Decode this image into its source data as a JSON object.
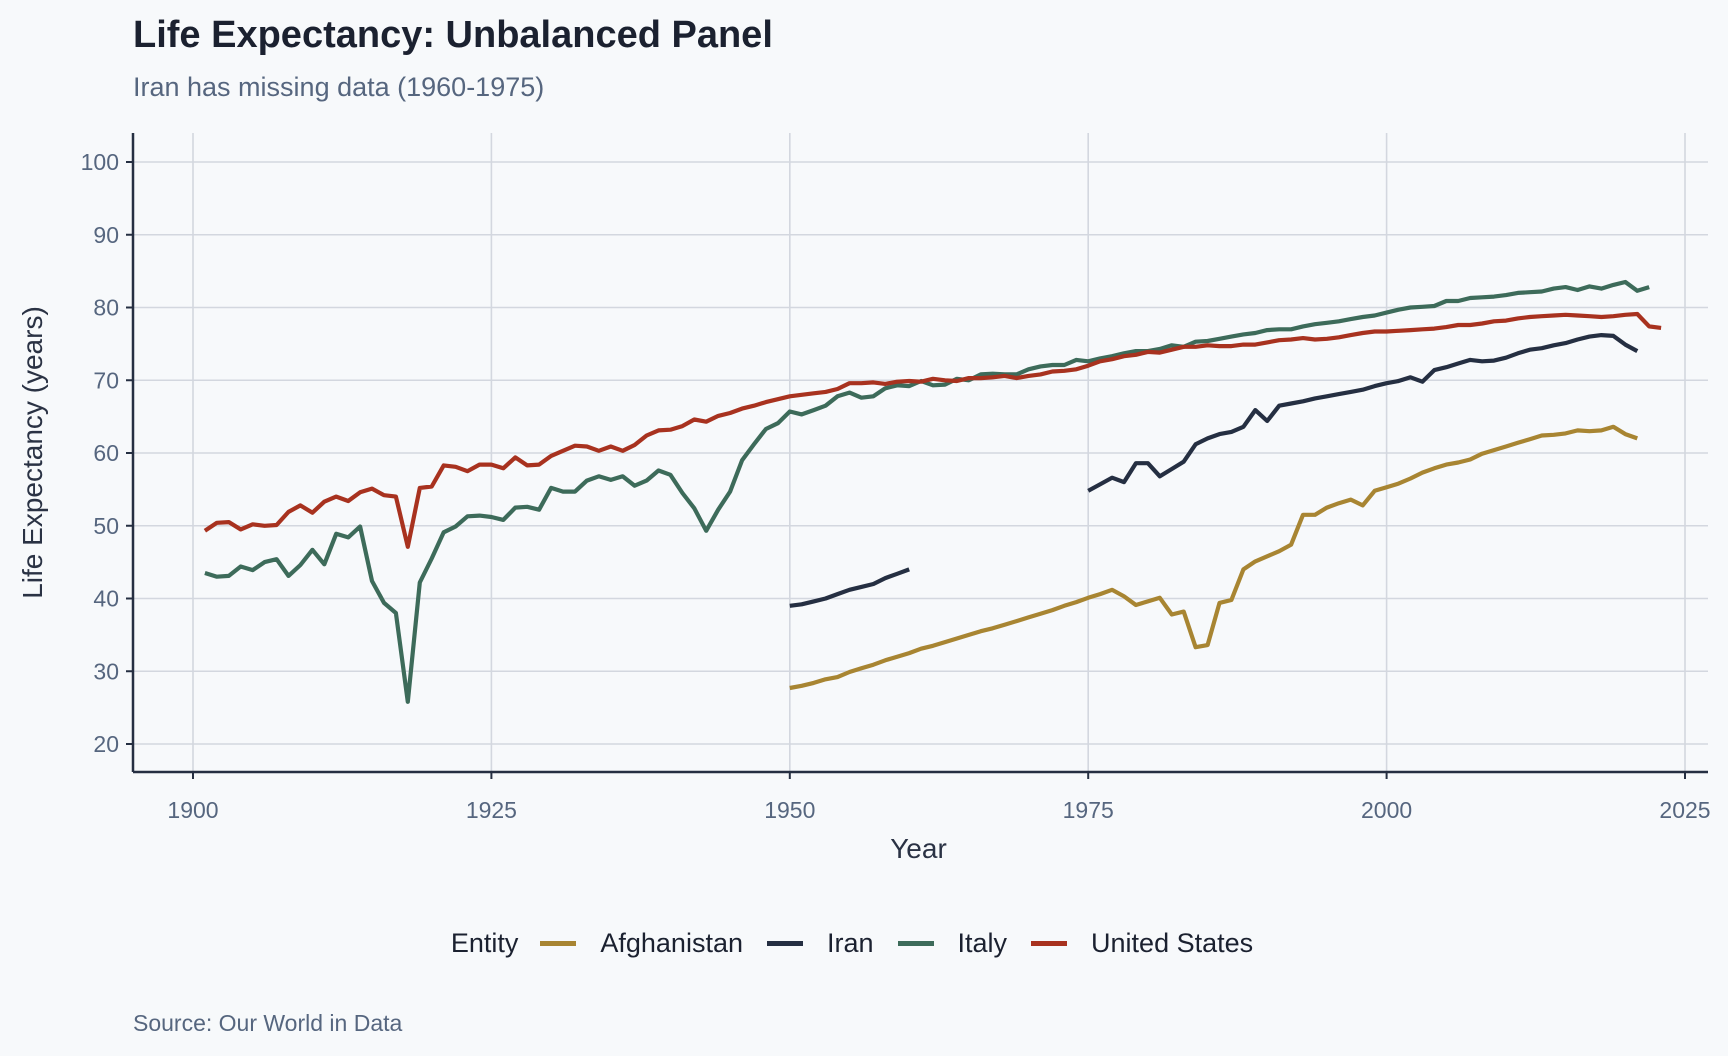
{
  "title": "Life Expectancy: Unbalanced Panel",
  "subtitle": "Iran has missing data (1960-1975)",
  "source": "Source: Our World in Data",
  "legend": {
    "title": "Entity",
    "items": [
      {
        "label": "Afghanistan",
        "color": "#a88532"
      },
      {
        "label": "Iran",
        "color": "#252f42"
      },
      {
        "label": "Italy",
        "color": "#3d6b5a"
      },
      {
        "label": "United States",
        "color": "#a8321f"
      }
    ]
  },
  "chart_data": {
    "type": "line",
    "title": "Life Expectancy: Unbalanced Panel",
    "subtitle": "Iran has missing data (1960-1975)",
    "xlabel": "Year",
    "ylabel": "Life Expectancy (years)",
    "xlim": [
      1895,
      2027
    ],
    "ylim": [
      16,
      104
    ],
    "xticks": [
      1900,
      1925,
      1950,
      1975,
      2000,
      2025
    ],
    "yticks": [
      20,
      30,
      40,
      50,
      60,
      70,
      80,
      90,
      100
    ],
    "grid": true,
    "legend_position": "bottom",
    "series": [
      {
        "name": "Afghanistan",
        "color": "#a88532",
        "segments": [
          {
            "x_start": 1950,
            "values": [
              27.7,
              28.0,
              28.4,
              28.9,
              29.2,
              29.9,
              30.4,
              30.9,
              31.5,
              32.0,
              32.5,
              33.1,
              33.5,
              34.0,
              34.5,
              35.0,
              35.5,
              35.9,
              36.4,
              36.9,
              37.4,
              37.9,
              38.4,
              39.0,
              39.5,
              40.1,
              40.6,
              41.2,
              40.3,
              39.1,
              39.6,
              40.1,
              37.8,
              38.2,
              33.3,
              33.6,
              39.4,
              39.8,
              44.0,
              45.1,
              45.8,
              46.5,
              47.4,
              51.5,
              51.5,
              52.5,
              53.1,
              53.6,
              52.8,
              54.8,
              55.3,
              55.8,
              56.5,
              57.3,
              57.9,
              58.4,
              58.7,
              59.1,
              59.9,
              60.4,
              60.9,
              61.4,
              61.9,
              62.4,
              62.5,
              62.7,
              63.1,
              63.0,
              63.1,
              63.6,
              62.6,
              62.0
            ]
          }
        ]
      },
      {
        "name": "Iran",
        "color": "#252f42",
        "segments": [
          {
            "x_start": 1950,
            "values": [
              39.0,
              39.2,
              39.6,
              40.0,
              40.6,
              41.2,
              41.6,
              42.0,
              42.8,
              43.4,
              44.0
            ]
          },
          {
            "x_start": 1975,
            "values": [
              54.8,
              55.7,
              56.6,
              56.0,
              58.6,
              58.6,
              56.8,
              57.8,
              58.8,
              61.2,
              62.0,
              62.6,
              62.9,
              63.6,
              65.9,
              64.4,
              66.5,
              66.8,
              67.1,
              67.5,
              67.8,
              68.1,
              68.4,
              68.7,
              69.2,
              69.6,
              69.9,
              70.4,
              69.8,
              71.4,
              71.8,
              72.3,
              72.8,
              72.6,
              72.7,
              73.1,
              73.7,
              74.2,
              74.4,
              74.8,
              75.1,
              75.6,
              76.0,
              76.2,
              76.1,
              74.9,
              74.0
            ]
          }
        ]
      },
      {
        "name": "Italy",
        "color": "#3d6b5a",
        "segments": [
          {
            "x_start": 1901,
            "values": [
              43.5,
              43.0,
              43.1,
              44.4,
              43.9,
              45.0,
              45.4,
              43.1,
              44.6,
              46.7,
              44.7,
              48.9,
              48.4,
              49.9,
              42.4,
              39.4,
              38.0,
              25.8,
              42.2,
              45.5,
              49.1,
              49.9,
              51.3,
              51.4,
              51.2,
              50.8,
              52.5,
              52.6,
              52.2,
              55.2,
              54.7,
              54.7,
              56.2,
              56.8,
              56.3,
              56.8,
              55.5,
              56.2,
              57.6,
              57.0,
              54.5,
              52.4,
              49.3,
              52.2,
              54.7,
              59.0,
              61.2,
              63.3,
              64.1,
              65.7,
              65.3,
              65.9,
              66.5,
              67.8,
              68.3,
              67.6,
              67.8,
              68.9,
              69.3,
              69.2,
              69.9,
              69.3,
              69.4,
              70.2,
              70.0,
              70.8,
              70.9,
              70.8,
              70.8,
              71.5,
              71.9,
              72.1,
              72.1,
              72.8,
              72.6,
              73.0,
              73.3,
              73.7,
              74.0,
              74.0,
              74.3,
              74.8,
              74.6,
              75.3,
              75.4,
              75.7,
              76.0,
              76.3,
              76.5,
              76.9,
              77.0,
              77.0,
              77.4,
              77.7,
              77.9,
              78.1,
              78.4,
              78.7,
              78.9,
              79.3,
              79.7,
              80.0,
              80.1,
              80.2,
              80.9,
              80.9,
              81.3,
              81.4,
              81.5,
              81.7,
              82.0,
              82.1,
              82.2,
              82.6,
              82.8,
              82.4,
              82.9,
              82.6,
              83.1,
              83.5,
              82.3,
              82.8
            ]
          }
        ]
      },
      {
        "name": "United States",
        "color": "#a8321f",
        "segments": [
          {
            "x_start": 1901,
            "values": [
              49.3,
              50.4,
              50.5,
              49.5,
              50.2,
              50.0,
              50.1,
              51.9,
              52.8,
              51.8,
              53.3,
              54.0,
              53.4,
              54.6,
              55.1,
              54.2,
              54.0,
              47.1,
              55.2,
              55.4,
              58.3,
              58.1,
              57.5,
              58.4,
              58.4,
              57.9,
              59.4,
              58.3,
              58.4,
              59.6,
              60.3,
              61.0,
              60.9,
              60.3,
              60.9,
              60.3,
              61.1,
              62.4,
              63.1,
              63.2,
              63.7,
              64.6,
              64.3,
              65.1,
              65.5,
              66.1,
              66.5,
              67.0,
              67.4,
              67.8,
              68.0,
              68.2,
              68.4,
              68.8,
              69.6,
              69.6,
              69.7,
              69.5,
              69.8,
              69.9,
              69.8,
              70.2,
              70.0,
              69.9,
              70.3,
              70.3,
              70.4,
              70.6,
              70.3,
              70.6,
              70.8,
              71.2,
              71.3,
              71.5,
              72.0,
              72.6,
              72.9,
              73.3,
              73.5,
              73.9,
              73.8,
              74.2,
              74.6,
              74.6,
              74.8,
              74.7,
              74.7,
              74.9,
              74.9,
              75.2,
              75.5,
              75.6,
              75.8,
              75.6,
              75.7,
              75.9,
              76.2,
              76.5,
              76.7,
              76.7,
              76.8,
              76.9,
              77.0,
              77.1,
              77.3,
              77.6,
              77.6,
              77.8,
              78.1,
              78.2,
              78.5,
              78.7,
              78.8,
              78.9,
              79.0,
              78.9,
              78.8,
              78.7,
              78.8,
              79.0,
              79.1,
              77.4,
              77.2
            ]
          }
        ]
      }
    ]
  }
}
